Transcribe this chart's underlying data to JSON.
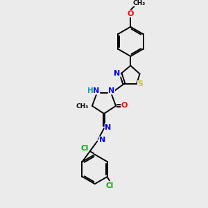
{
  "bg_color": "#ebebeb",
  "bond_color": "#000000",
  "bond_width": 1.4,
  "atom_colors": {
    "N": "#0000ff",
    "O": "#ff0000",
    "S": "#cccc00",
    "Cl": "#00aa00",
    "H": "#00aaaa"
  }
}
